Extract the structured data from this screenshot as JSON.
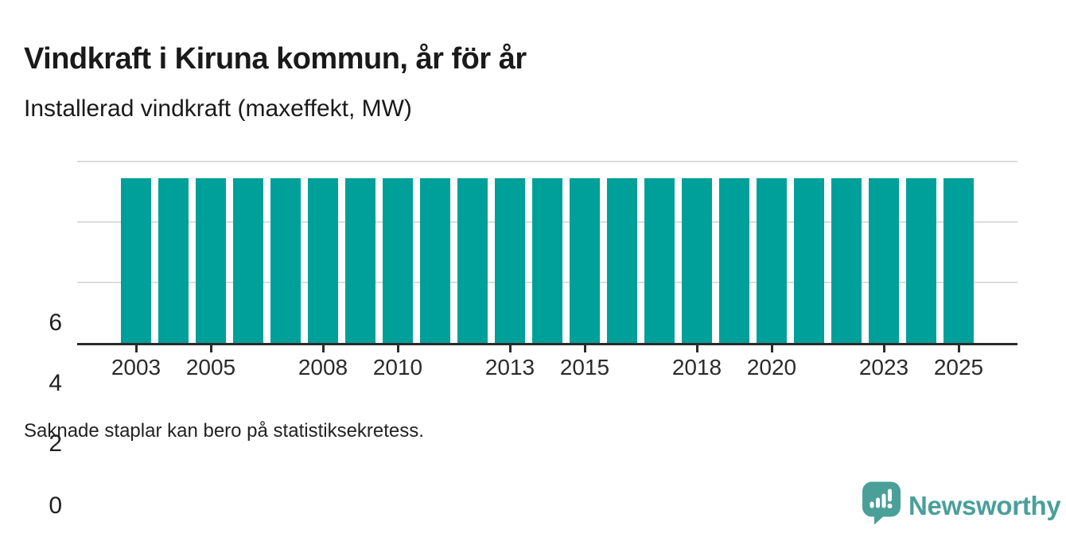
{
  "title": "Vindkraft i Kiruna kommun, år för år",
  "subtitle": "Installerad vindkraft (maxeffekt, MW)",
  "footnote": "Saknade staplar kan bero på statistiksekretess.",
  "logo": {
    "text": "Newsworthy",
    "icon": "speech-bubble-bar-chart-icon",
    "color": "#4A9F99"
  },
  "colors": {
    "bar": "#00A09A",
    "axis": "#2b2b2b",
    "grid": "#dcdcdc",
    "text": "#1a1a1a"
  },
  "chart_data": {
    "type": "bar",
    "title": "Vindkraft i Kiruna kommun, år för år",
    "subtitle": "Installerad vindkraft (maxeffekt, MW)",
    "unit": "MW",
    "x": [
      2003,
      2004,
      2005,
      2006,
      2007,
      2008,
      2009,
      2010,
      2011,
      2012,
      2013,
      2014,
      2015,
      2016,
      2017,
      2018,
      2019,
      2020,
      2021,
      2022,
      2023,
      2024,
      2025
    ],
    "values": [
      5.45,
      5.45,
      5.45,
      5.45,
      5.45,
      5.45,
      5.45,
      5.45,
      5.45,
      5.45,
      5.45,
      5.45,
      5.45,
      5.45,
      5.45,
      5.45,
      5.45,
      5.45,
      5.45,
      5.45,
      5.45,
      5.45,
      5.45
    ],
    "ylim": [
      0,
      6
    ],
    "yticks": [
      0,
      2,
      4,
      6
    ],
    "xtick_labels": [
      2003,
      2005,
      2008,
      2010,
      2013,
      2015,
      2018,
      2020,
      2023,
      2025
    ],
    "grid": "horizontal",
    "legend": "none",
    "bar_color": "#00A09A"
  }
}
